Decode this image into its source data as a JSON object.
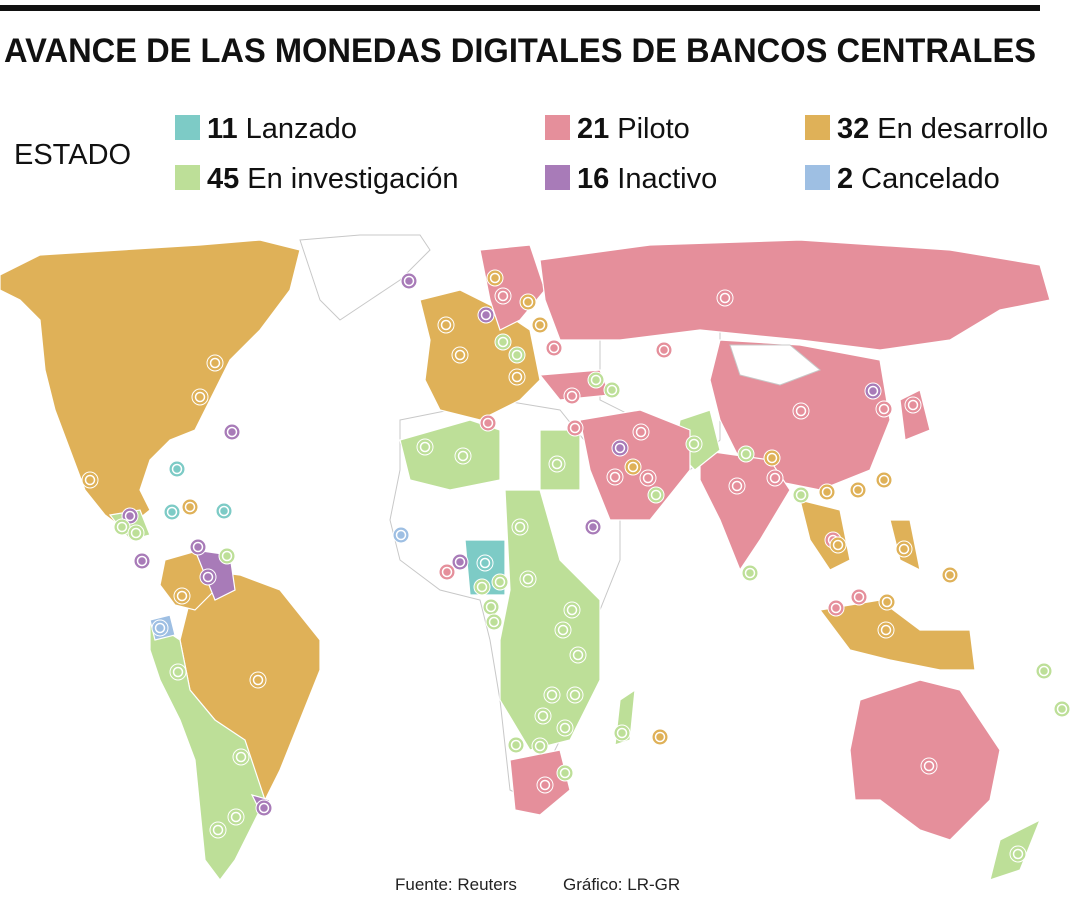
{
  "title": "AVANCE DE LAS MONEDAS DIGITALES DE BANCOS CENTRALES",
  "legend": {
    "title": "ESTADO",
    "items": [
      {
        "count": 11,
        "label": "Lanzado",
        "color": "#7dcbc6"
      },
      {
        "count": 21,
        "label": "Piloto",
        "color": "#e58f9b"
      },
      {
        "count": 32,
        "label": "En desarrollo",
        "color": "#dfb158"
      },
      {
        "count": 45,
        "label": "En investigación",
        "color": "#bddf98"
      },
      {
        "count": 16,
        "label": "Inactivo",
        "color": "#a87bb8"
      },
      {
        "count": 2,
        "label": "Cancelado",
        "color": "#9ebfe3"
      }
    ]
  },
  "source": "Fuente: Reuters",
  "credit": "Gráfico: LR-GR"
}
